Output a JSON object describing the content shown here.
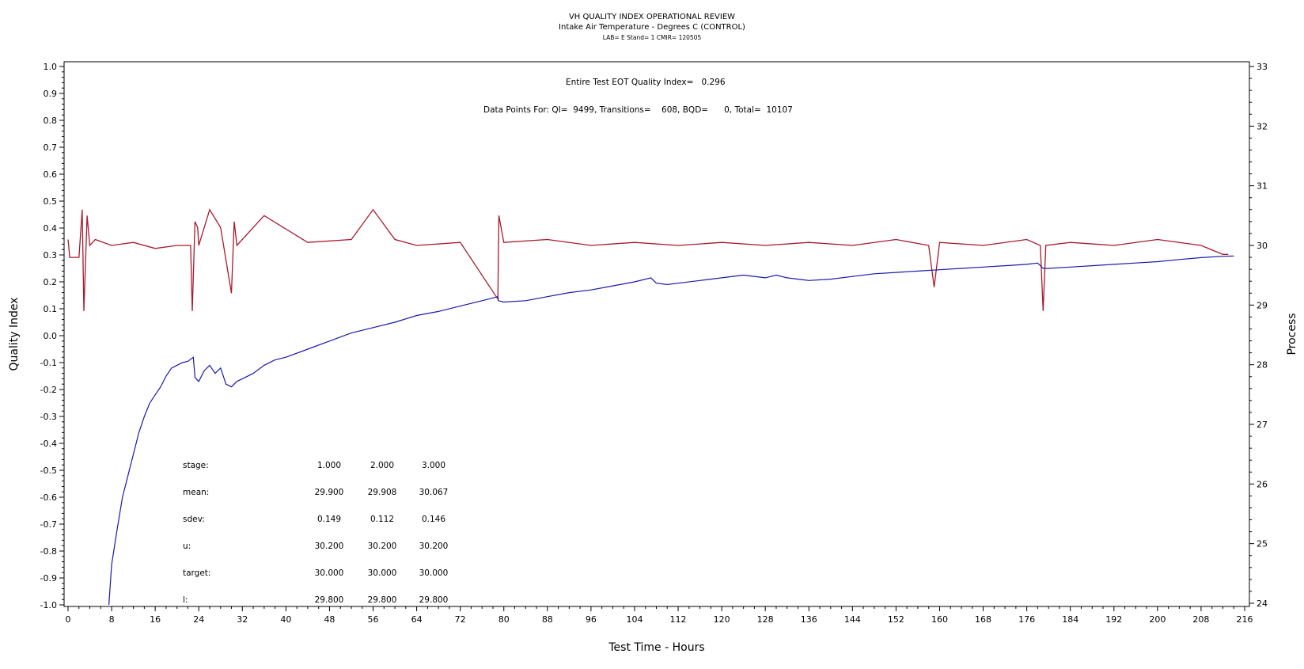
{
  "chart_data": {
    "type": "line",
    "title": "VH QUALITY INDEX OPERATIONAL REVIEW",
    "subtitle": "Intake Air Temperature - Degrees C (CONTROL)",
    "subtitle2": "LAB= E Stand= 1 CMIR= 120505",
    "xlabel": "Test Time - Hours",
    "ylabel": "Quality Index",
    "y2label": "Process",
    "xlim": [
      0,
      216
    ],
    "ylim": [
      -1.0,
      1.0
    ],
    "y2lim": [
      24,
      33
    ],
    "xticks": [
      0,
      8,
      16,
      24,
      32,
      40,
      48,
      56,
      64,
      72,
      80,
      88,
      96,
      104,
      112,
      120,
      128,
      136,
      144,
      152,
      160,
      168,
      176,
      184,
      192,
      200,
      208,
      216
    ],
    "yticks": [
      1.0,
      0.9,
      0.8,
      0.7,
      0.6,
      0.5,
      0.4,
      0.3,
      0.2,
      0.1,
      0.0,
      -0.1,
      -0.2,
      -0.3,
      -0.4,
      -0.5,
      -0.6,
      -0.7,
      -0.8,
      -0.9,
      -1.0
    ],
    "yticklabels": [
      "1.0",
      "0.9",
      "0.8",
      "0.7",
      "0.6",
      "0.5",
      "0.4",
      "0.3",
      "0.2",
      "0.1",
      "0.0",
      "-0.1",
      "-0.2",
      "-0.3",
      "-0.4",
      "-0.5",
      "-0.6",
      "-0.7",
      "-0.8",
      "-0.9",
      "-1.0"
    ],
    "y2ticks": [
      33,
      32,
      31,
      30,
      29,
      28,
      27,
      26,
      25,
      24
    ],
    "annotations": {
      "eot": "Entire Test EOT Quality Index=   0.296",
      "points": "Data Points For: QI=  9499, Transitions=    608, BQD=      0, Total=  10107"
    },
    "stats_table": [
      {
        "label": "stage:",
        "values": [
          "1.000",
          "2.000",
          "3.000"
        ]
      },
      {
        "label": "mean:",
        "values": [
          "29.900",
          "29.908",
          "30.067"
        ]
      },
      {
        "label": "sdev:",
        "values": [
          "0.149",
          "0.112",
          "0.146"
        ]
      },
      {
        "label": "u:",
        "values": [
          "30.200",
          "30.200",
          "30.200"
        ]
      },
      {
        "label": "target:",
        "values": [
          "30.000",
          "30.000",
          "30.000"
        ]
      },
      {
        "label": "l:",
        "values": [
          "29.800",
          "29.800",
          "29.800"
        ]
      }
    ],
    "series": [
      {
        "axis": "right",
        "color": "#a8192e",
        "x": [
          0,
          0.3,
          2,
          2.6,
          2.9,
          3.5,
          4,
          5,
          8,
          12,
          16,
          20,
          22.5,
          22.8,
          23.3,
          23.8,
          24,
          26,
          28,
          30,
          30.5,
          31,
          36,
          44,
          52,
          56,
          60,
          64,
          72,
          78.9,
          79.1,
          80,
          88,
          96,
          104,
          112,
          120,
          128,
          136,
          144,
          152,
          158,
          159,
          160,
          168,
          176,
          178.5,
          179,
          179.5,
          184,
          192,
          200,
          208,
          212,
          213
        ],
        "values": [
          30.1,
          29.8,
          29.8,
          30.6,
          28.9,
          30.5,
          30.0,
          30.1,
          30.0,
          30.05,
          29.95,
          30.0,
          30.0,
          28.9,
          30.4,
          30.3,
          30.0,
          30.6,
          30.3,
          29.2,
          30.4,
          30.0,
          30.5,
          30.05,
          30.1,
          30.6,
          30.1,
          30.0,
          30.05,
          29.1,
          30.5,
          30.05,
          30.1,
          30.0,
          30.05,
          30.0,
          30.05,
          30.0,
          30.05,
          30.0,
          30.1,
          30.0,
          29.3,
          30.05,
          30.0,
          30.1,
          30.0,
          28.9,
          30.0,
          30.05,
          30.0,
          30.1,
          30.0,
          29.85,
          29.85
        ]
      },
      {
        "axis": "left",
        "color": "#1a1aa8",
        "x": [
          7.5,
          8,
          9,
          10,
          11,
          12,
          13,
          14,
          15,
          16,
          17,
          18,
          19,
          20,
          21,
          22,
          23,
          23.3,
          24,
          25,
          26,
          27,
          28,
          29,
          30,
          31,
          32,
          34,
          36,
          38,
          40,
          44,
          48,
          52,
          56,
          60,
          64,
          68,
          72,
          76,
          78.9,
          79,
          80,
          84,
          88,
          92,
          96,
          100,
          104,
          107,
          108,
          110,
          112,
          116,
          120,
          124,
          128,
          130,
          132,
          134,
          136,
          140,
          144,
          148,
          152,
          156,
          160,
          164,
          168,
          172,
          176,
          178,
          179,
          180,
          184,
          188,
          192,
          196,
          200,
          204,
          208,
          212,
          214
        ],
        "values": [
          -1.0,
          -0.85,
          -0.72,
          -0.6,
          -0.52,
          -0.44,
          -0.36,
          -0.3,
          -0.25,
          -0.22,
          -0.19,
          -0.15,
          -0.12,
          -0.11,
          -0.1,
          -0.095,
          -0.08,
          -0.155,
          -0.17,
          -0.13,
          -0.11,
          -0.14,
          -0.12,
          -0.18,
          -0.19,
          -0.17,
          -0.16,
          -0.14,
          -0.11,
          -0.09,
          -0.08,
          -0.05,
          -0.02,
          0.01,
          0.03,
          0.05,
          0.075,
          0.09,
          0.11,
          0.13,
          0.145,
          0.13,
          0.125,
          0.13,
          0.145,
          0.16,
          0.17,
          0.185,
          0.2,
          0.215,
          0.195,
          0.19,
          0.195,
          0.205,
          0.215,
          0.225,
          0.215,
          0.225,
          0.215,
          0.21,
          0.205,
          0.21,
          0.22,
          0.23,
          0.235,
          0.24,
          0.245,
          0.25,
          0.255,
          0.26,
          0.265,
          0.27,
          0.25,
          0.25,
          0.255,
          0.26,
          0.265,
          0.27,
          0.275,
          0.283,
          0.29,
          0.295,
          0.296
        ]
      }
    ]
  }
}
